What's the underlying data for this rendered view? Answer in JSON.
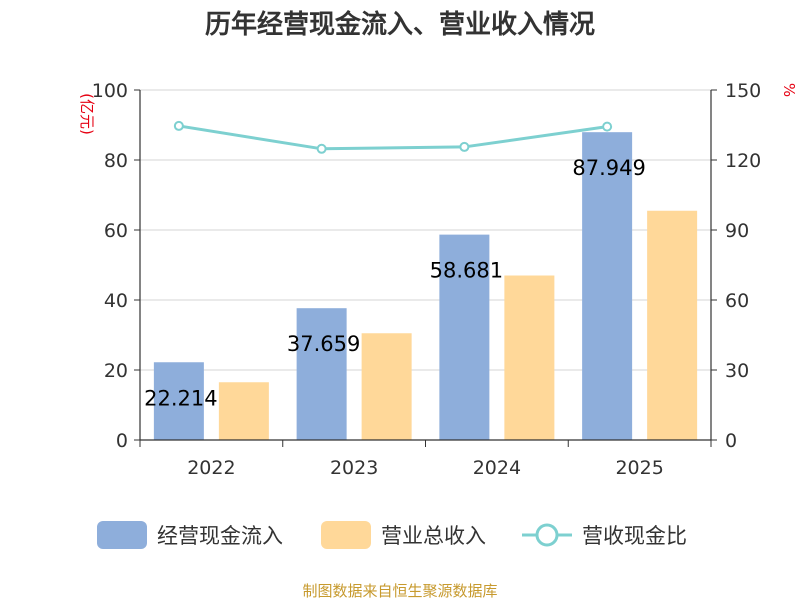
{
  "chart_data": {
    "type": "bar",
    "title": "历年经营现金流入、营业收入情况",
    "categories": [
      "2022",
      "2023",
      "2024",
      "2025"
    ],
    "series": [
      {
        "name": "经营现金流入",
        "kind": "bar",
        "axis": "left",
        "color": "#8eaedb",
        "values": [
          22.214,
          37.659,
          58.681,
          87.949
        ],
        "labels": [
          "22.214",
          "37.659",
          "58.681",
          "87.949"
        ]
      },
      {
        "name": "营业总收入",
        "kind": "bar",
        "axis": "left",
        "color": "#ffd899",
        "values": [
          16.5,
          30.5,
          47,
          65.5
        ]
      },
      {
        "name": "营收现金比",
        "kind": "line",
        "axis": "right",
        "color": "#7dd0d0",
        "values": [
          134.6,
          124.8,
          125.6,
          134.3
        ]
      }
    ],
    "ylabel_left": "(亿元)",
    "ylabel_right": "%",
    "ylim_left": [
      0,
      100
    ],
    "ylim_right": [
      0,
      150
    ],
    "yticks_left": [
      "0",
      "20",
      "40",
      "60",
      "80",
      "100"
    ],
    "yticks_right": [
      "0",
      "30",
      "60",
      "90",
      "120",
      "150"
    ],
    "grid": true,
    "legend_position": "bottom",
    "source_note": "制图数据来自恒生聚源数据库"
  }
}
